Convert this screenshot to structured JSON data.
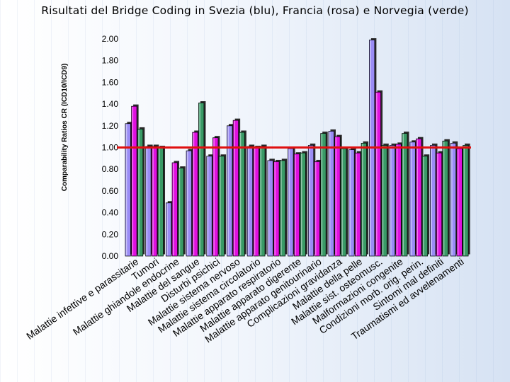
{
  "title": "Risultati del Bridge Coding in Svezia (blu), Francia (rosa) e Norvegia (verde)",
  "chart_data": {
    "type": "bar",
    "title": "Risultati del Bridge Coding in Svezia (blu), Francia (rosa) e Norvegia (verde)",
    "ylabel": "Comparability Ratios CR (ICD10/ICD9)",
    "xlabel": "",
    "ylim": [
      0,
      2.0
    ],
    "yticks": [
      "0.00",
      "0.20",
      "0.40",
      "0.60",
      "0.80",
      "1.00",
      "1.20",
      "1.40",
      "1.60",
      "1.80",
      "2.00"
    ],
    "reference_line": 1.0,
    "grid": false,
    "categories": [
      "Malattie infettive e parassitarie",
      "Tumori",
      "Malattie ghiandole endocrine",
      "Malattie del sangue",
      "Disturbi psichici",
      "Malattie sistema nervoso",
      "Malattie sistema circolatorio",
      "Malattie apparato respiratorio",
      "Malattie apparato digerente",
      "Malattie apparato genitourinario",
      "Complicazioni gravidanza",
      "Malattie della pelle",
      "Malattie sist. osteomusc.",
      "Malformazioni congenite",
      "Condizioni morb. orig. perin.",
      "Sintomi mal definiti",
      "Traumatismi ed avvelenamenti"
    ],
    "series": [
      {
        "name": "Svezia (blu)",
        "color": "#9a8cf5",
        "values": [
          1.22,
          1.01,
          0.49,
          0.97,
          0.92,
          1.2,
          1.01,
          0.88,
          0.99,
          1.02,
          1.15,
          0.98,
          1.99,
          1.02,
          1.05,
          1.02,
          1.04
        ]
      },
      {
        "name": "Francia (rosa)",
        "color": "#e010e0",
        "values": [
          1.38,
          1.01,
          0.86,
          1.14,
          1.09,
          1.25,
          1.0,
          0.87,
          0.94,
          0.87,
          1.1,
          0.95,
          1.51,
          1.03,
          1.08,
          0.95,
          0.99
        ]
      },
      {
        "name": "Norvegia (verde)",
        "color": "#3a9a66",
        "values": [
          1.17,
          1.0,
          0.81,
          1.41,
          0.92,
          1.14,
          1.01,
          0.88,
          0.95,
          1.13,
          0.99,
          1.04,
          1.02,
          1.13,
          0.92,
          1.06,
          1.02
        ]
      }
    ]
  }
}
